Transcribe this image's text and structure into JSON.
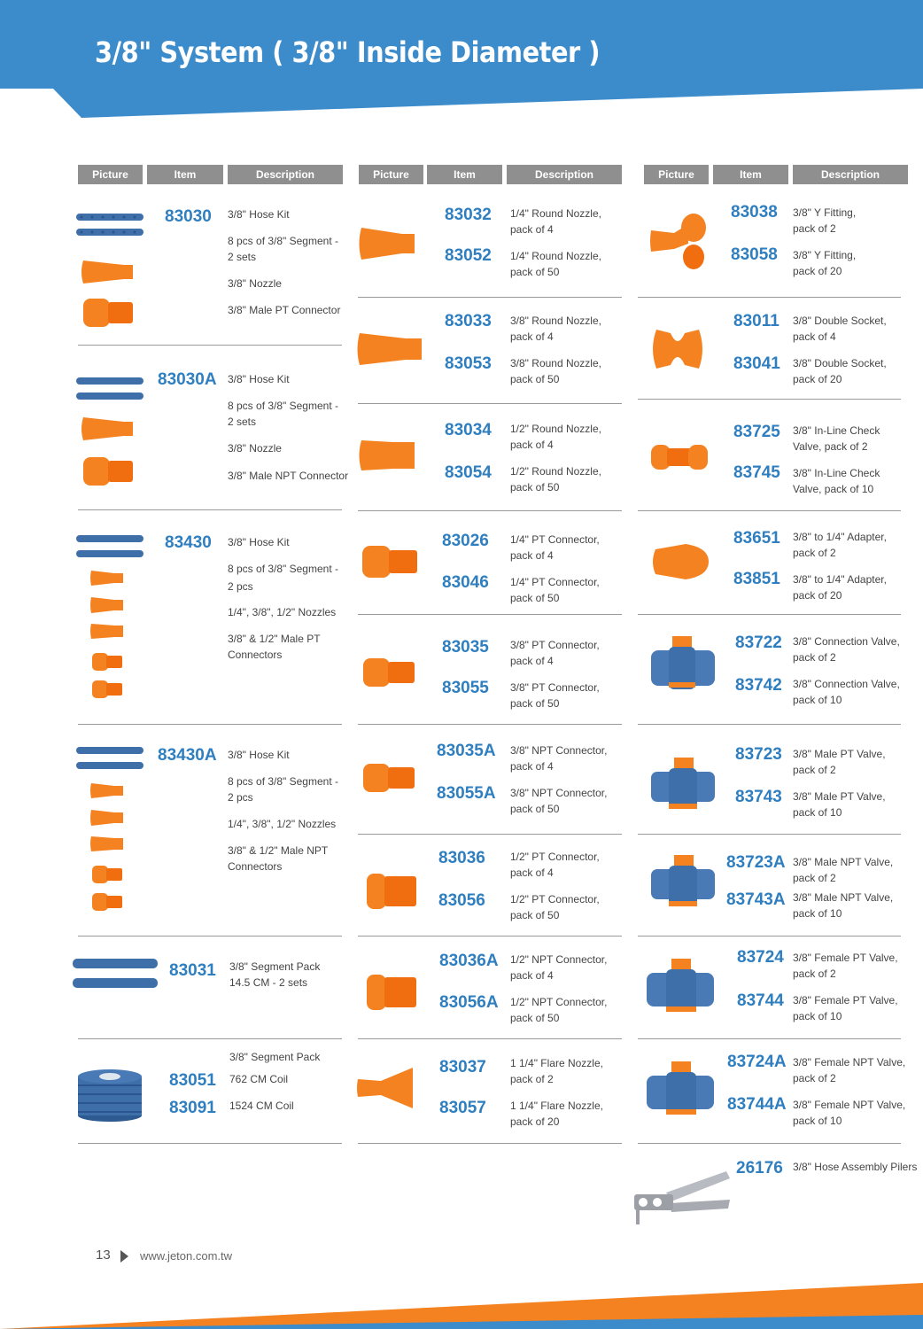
{
  "page": {
    "title": "3/8\" System ( 3/8\" Inside Diameter )",
    "page_number": "13",
    "url": "www.jeton.com.tw"
  },
  "colors": {
    "blue": "#3c8ccc",
    "orange": "#f58220",
    "code": "#2f7fc0",
    "header": "#8f8f8f"
  },
  "headers": {
    "picture": "Picture",
    "item": "Item",
    "description": "Description"
  },
  "col1": [
    {
      "code": "83030",
      "lines": [
        "3/8\" Hose Kit",
        "8 pcs of 3/8\" Segment -",
        "2 sets",
        "3/8\" Nozzle",
        "3/8\" Male PT Connector"
      ]
    },
    {
      "code": "83030A",
      "lines": [
        "3/8\" Hose Kit",
        "8 pcs of 3/8\" Segment -",
        "2 sets",
        "3/8\" Nozzle",
        "3/8\" Male NPT Connector"
      ]
    },
    {
      "code": "83430",
      "lines": [
        "3/8\" Hose Kit",
        "8 pcs of 3/8\" Segment -",
        "2 pcs",
        "1/4\", 3/8\", 1/2\" Nozzles",
        "3/8\" & 1/2\" Male PT",
        "Connectors"
      ]
    },
    {
      "code": "83430A",
      "lines": [
        "3/8\" Hose Kit",
        "8 pcs of 3/8\" Segment -",
        "2 pcs",
        "1/4\", 3/8\", 1/2\" Nozzles",
        "3/8\" & 1/2\" Male NPT",
        "Connectors"
      ]
    },
    {
      "code": "83031",
      "lines": [
        "3/8\" Segment Pack",
        "14.5 CM - 2 sets"
      ]
    },
    {
      "codes": [
        "83051",
        "83091"
      ],
      "lines": [
        "3/8\" Segment Pack",
        "762 CM Coil",
        "1524 CM Coil"
      ]
    }
  ],
  "col2": [
    {
      "a": "83032",
      "a1": "1/4\" Round Nozzle,",
      "a2": "pack of 4",
      "b": "83052",
      "b1": "1/4\" Round Nozzle,",
      "b2": "pack of 50"
    },
    {
      "a": "83033",
      "a1": "3/8\" Round Nozzle,",
      "a2": "pack of 4",
      "b": "83053",
      "b1": "3/8\" Round Nozzle,",
      "b2": "pack of 50"
    },
    {
      "a": "83034",
      "a1": "1/2\" Round Nozzle,",
      "a2": "pack of 4",
      "b": "83054",
      "b1": "1/2\" Round Nozzle,",
      "b2": "pack of 50"
    },
    {
      "a": "83026",
      "a1": "1/4\" PT Connector,",
      "a2": "pack of 4",
      "b": "83046",
      "b1": "1/4\" PT Connector,",
      "b2": "pack of 50"
    },
    {
      "a": "83035",
      "a1": "3/8\" PT Connector,",
      "a2": "pack of 4",
      "b": "83055",
      "b1": "3/8\" PT Connector,",
      "b2": "pack of 50"
    },
    {
      "a": "83035A",
      "a1": "3/8\" NPT Connector,",
      "a2": "pack of 4",
      "b": "83055A",
      "b1": "3/8\" NPT Connector,",
      "b2": "pack of 50"
    },
    {
      "a": "83036",
      "a1": "1/2\" PT Connector,",
      "a2": "pack of 4",
      "b": "83056",
      "b1": "1/2\" PT Connector,",
      "b2": "pack of 50"
    },
    {
      "a": "83036A",
      "a1": "1/2\" NPT Connector,",
      "a2": "pack of 4",
      "b": "83056A",
      "b1": "1/2\" NPT Connector,",
      "b2": "pack of 50"
    },
    {
      "a": "83037",
      "a1": "1 1/4\" Flare Nozzle,",
      "a2": "pack of 2",
      "b": "83057",
      "b1": "1 1/4\" Flare Nozzle,",
      "b2": "pack of 20"
    }
  ],
  "col3": [
    {
      "a": "83038",
      "a1": "3/8\" Y Fitting,",
      "a2": "pack of 2",
      "b": "83058",
      "b1": "3/8\" Y Fitting,",
      "b2": "pack of 20"
    },
    {
      "a": "83011",
      "a1": "3/8\" Double Socket,",
      "a2": "pack of 4",
      "b": "83041",
      "b1": "3/8\" Double Socket,",
      "b2": "pack of 20"
    },
    {
      "a": "83725",
      "a1": "3/8\" In-Line Check",
      "a2": "Valve, pack of 2",
      "b": "83745",
      "b1": "3/8\" In-Line Check",
      "b2": "Valve, pack of 10"
    },
    {
      "a": "83651",
      "a1": "3/8\" to 1/4\" Adapter,",
      "a2": "pack of 2",
      "b": "83851",
      "b1": "3/8\" to 1/4\" Adapter,",
      "b2": "pack of 20"
    },
    {
      "a": "83722",
      "a1": "3/8\" Connection Valve,",
      "a2": "pack of 2",
      "b": "83742",
      "b1": "3/8\" Connection Valve,",
      "b2": "pack of 10"
    },
    {
      "a": "83723",
      "a1": "3/8\" Male PT Valve,",
      "a2": "pack of 2",
      "b": "83743",
      "b1": "3/8\" Male PT Valve,",
      "b2": "pack of 10"
    },
    {
      "a": "83723A",
      "a1": "3/8\" Male NPT Valve,",
      "a2": "pack of 2",
      "b": "83743A",
      "b1": "3/8\" Male NPT Valve,",
      "b2": "pack of 10"
    },
    {
      "a": "83724",
      "a1": "3/8\" Female PT Valve,",
      "a2": "pack of 2",
      "b": "83744",
      "b1": "3/8\" Female PT Valve,",
      "b2": "pack of 10"
    },
    {
      "a": "83724A",
      "a1": "3/8\" Female NPT Valve,",
      "a2": "pack of 2",
      "b": "83744A",
      "b1": "3/8\" Female NPT Valve,",
      "b2": "pack of 10"
    }
  ],
  "pliers": {
    "code": "26176",
    "desc": "3/8\" Hose Assembly Pilers"
  }
}
